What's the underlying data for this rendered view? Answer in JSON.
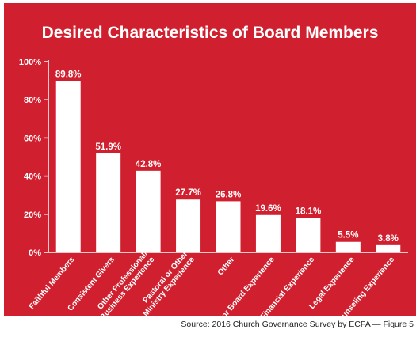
{
  "chart_data": {
    "type": "bar",
    "title": "Desired Characteristics of Board Members",
    "categories": [
      "Faithful Members",
      "Consistent Givers",
      [
        "Other Professional/",
        "Business Experience"
      ],
      [
        "Pastoral or Other",
        "Ministry Experience"
      ],
      "Other",
      "Prior Board Experience",
      "Financial Experience",
      "Legal Experience",
      "Counseling Experience"
    ],
    "values": [
      89.8,
      51.9,
      42.8,
      27.7,
      26.8,
      19.6,
      18.1,
      5.5,
      3.8
    ],
    "value_labels": [
      "89.8%",
      "51.9%",
      "42.8%",
      "27.7%",
      "26.8%",
      "19.6%",
      "18.1%",
      "5.5%",
      "3.8%"
    ],
    "y_ticks": [
      "0%",
      "20%",
      "40%",
      "60%",
      "80%",
      "100%"
    ],
    "ylim": [
      0,
      100
    ],
    "grid": false
  },
  "source": "Source: 2016 Church Governance Survey by ECFA — Figure 5",
  "colors": {
    "background": "#d0202f",
    "bar": "#ffffff",
    "text": "#ffffff",
    "axis": "#ffffff"
  }
}
